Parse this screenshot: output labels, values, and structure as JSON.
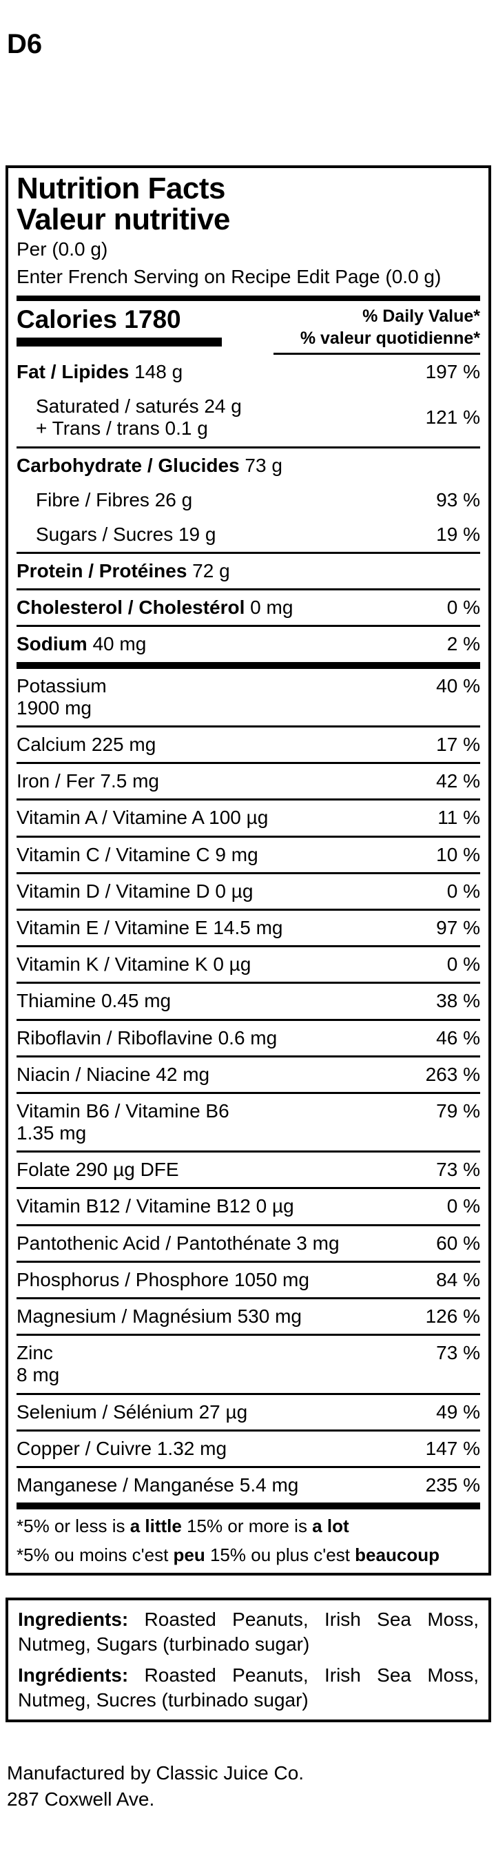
{
  "doc_code": "D6",
  "panel": {
    "title_en": "Nutrition Facts",
    "title_fr": "Valeur nutritive",
    "serving_per": "Per (0.0 g)",
    "serving_fr": "Enter French Serving on Recipe Edit Page (0.0 g)",
    "calories_label": "Calories 1780",
    "dv_header_en": "% Daily Value*",
    "dv_header_fr": "% valeur quotidienne*",
    "macro_rows": [
      {
        "style": "main",
        "sep": false,
        "bold": "Fat / Lipides",
        "rest": " 148 g",
        "dv": "197 %"
      },
      {
        "style": "sub2",
        "sep": false,
        "lines": [
          "Saturated / saturés 24 g",
          "+ Trans / trans 0.1 g"
        ],
        "dv": "121 %"
      },
      {
        "style": "main",
        "sep": true,
        "bold": "Carbohydrate / Glucides",
        "rest": " 73 g",
        "dv": ""
      },
      {
        "style": "sub",
        "sep": false,
        "lines": [
          "Fibre / Fibres 26 g"
        ],
        "dv": "93 %"
      },
      {
        "style": "sub",
        "sep": false,
        "lines": [
          "Sugars / Sucres 19 g"
        ],
        "dv": "19 %"
      },
      {
        "style": "main",
        "sep": true,
        "bold": "Protein / Protéines",
        "rest": " 72 g",
        "dv": ""
      },
      {
        "style": "main",
        "sep": true,
        "bold": "Cholesterol / Cholestérol",
        "rest": " 0 mg",
        "dv": "0 %"
      },
      {
        "style": "main",
        "sep": true,
        "bold": "Sodium",
        "rest": " 40 mg",
        "dv": "2 %"
      }
    ],
    "micro_rows": [
      {
        "lines": [
          "Potassium",
          "1900 mg"
        ],
        "dv": "40 %"
      },
      {
        "lines": [
          "Calcium 225 mg"
        ],
        "dv": "17 %"
      },
      {
        "lines": [
          "Iron / Fer 7.5 mg"
        ],
        "dv": "42 %"
      },
      {
        "lines": [
          "Vitamin A / Vitamine A 100 µg"
        ],
        "dv": "11 %"
      },
      {
        "lines": [
          "Vitamin C / Vitamine C 9 mg"
        ],
        "dv": "10 %"
      },
      {
        "lines": [
          "Vitamin D / Vitamine D 0 µg"
        ],
        "dv": "0 %"
      },
      {
        "lines": [
          "Vitamin E / Vitamine E 14.5 mg"
        ],
        "dv": "97 %"
      },
      {
        "lines": [
          "Vitamin K / Vitamine K 0 µg"
        ],
        "dv": "0 %"
      },
      {
        "lines": [
          "Thiamine 0.45 mg"
        ],
        "dv": "38 %"
      },
      {
        "lines": [
          "Riboflavin / Riboflavine 0.6 mg"
        ],
        "dv": "46 %"
      },
      {
        "lines": [
          "Niacin / Niacine 42 mg"
        ],
        "dv": "263 %"
      },
      {
        "lines": [
          "Vitamin B6 / Vitamine B6",
          "1.35 mg"
        ],
        "dv": "79 %"
      },
      {
        "lines": [
          "Folate 290 µg DFE"
        ],
        "dv": "73 %"
      },
      {
        "lines": [
          "Vitamin B12 / Vitamine B12 0 µg"
        ],
        "dv": "0 %"
      },
      {
        "lines": [
          "Pantothenic Acid / Pantothénate 3 mg"
        ],
        "dv": "60 %"
      },
      {
        "lines": [
          "Phosphorus / Phosphore 1050 mg"
        ],
        "dv": "84 %"
      },
      {
        "lines": [
          "Magnesium / Magnésium 530 mg"
        ],
        "dv": "126 %"
      },
      {
        "lines": [
          "Zinc",
          "8 mg"
        ],
        "dv": "73 %"
      },
      {
        "lines": [
          "Selenium / Sélénium 27 µg"
        ],
        "dv": "49 %"
      },
      {
        "lines": [
          "Copper / Cuivre 1.32 mg"
        ],
        "dv": "147 %"
      },
      {
        "lines": [
          "Manganese / Manganése 5.4 mg"
        ],
        "dv": "235 %"
      }
    ],
    "footnote_en": {
      "pre": "*5% or less is ",
      "bold1": "a little",
      "mid": " 15% or more is ",
      "bold2": "a lot"
    },
    "footnote_fr": {
      "pre": "*5% ou moins c'est ",
      "bold1": "peu",
      "mid": " 15% ou plus c'est ",
      "bold2": "beaucoup"
    }
  },
  "ingredients": {
    "label_en": "Ingredients:",
    "text_en": " Roasted Peanuts, Irish Sea Moss, Nutmeg, Sugars (turbinado sugar)",
    "label_fr": "Ingrédients:",
    "text_fr": " Roasted Peanuts, Irish Sea Moss, Nutmeg, Sucres (turbinado sugar)"
  },
  "footer": {
    "line1": "Manufactured by Classic Juice Co.",
    "line2": "287 Coxwell Ave."
  }
}
